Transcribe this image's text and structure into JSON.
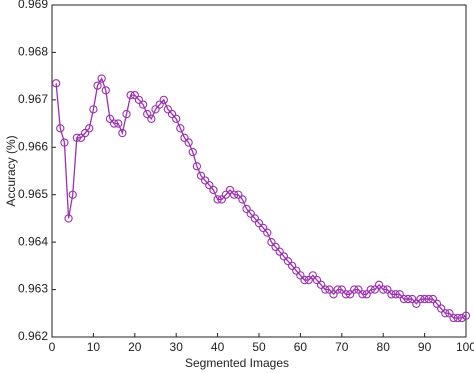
{
  "chart_data": {
    "type": "line",
    "x_label": "Segmented Images",
    "y_label": "Accuracy (%)",
    "xlim": [
      0,
      100
    ],
    "xticks": [
      0,
      10,
      20,
      30,
      40,
      50,
      60,
      70,
      80,
      90,
      100
    ],
    "ylim": [
      0.962,
      0.969
    ],
    "yticks": [
      0.962,
      0.963,
      0.964,
      0.965,
      0.966,
      0.967,
      0.968,
      0.969
    ],
    "x": [
      1,
      2,
      3,
      4,
      5,
      6,
      7,
      8,
      9,
      10,
      11,
      12,
      13,
      14,
      15,
      16,
      17,
      18,
      19,
      20,
      21,
      22,
      23,
      24,
      25,
      26,
      27,
      28,
      29,
      30,
      31,
      32,
      33,
      34,
      35,
      36,
      37,
      38,
      39,
      40,
      41,
      42,
      43,
      44,
      45,
      46,
      47,
      48,
      49,
      50,
      51,
      52,
      53,
      54,
      55,
      56,
      57,
      58,
      59,
      60,
      61,
      62,
      63,
      64,
      65,
      66,
      67,
      68,
      69,
      70,
      71,
      72,
      73,
      74,
      75,
      76,
      77,
      78,
      79,
      80,
      81,
      82,
      83,
      84,
      85,
      86,
      87,
      88,
      89,
      90,
      91,
      92,
      93,
      94,
      95,
      96,
      97,
      98,
      99,
      100
    ],
    "series": [
      {
        "color": "#9b30b0",
        "values": [
          0.96735,
          0.9664,
          0.9661,
          0.9645,
          0.965,
          0.9662,
          0.9662,
          0.9663,
          0.9664,
          0.9668,
          0.9673,
          0.96745,
          0.9672,
          0.9666,
          0.9665,
          0.9665,
          0.9663,
          0.9667,
          0.9671,
          0.9671,
          0.967,
          0.9669,
          0.9667,
          0.9666,
          0.9668,
          0.9669,
          0.967,
          0.9668,
          0.9667,
          0.9666,
          0.9664,
          0.9662,
          0.9661,
          0.9659,
          0.9656,
          0.9654,
          0.9653,
          0.9652,
          0.9651,
          0.9649,
          0.9649,
          0.965,
          0.9651,
          0.965,
          0.965,
          0.9649,
          0.9647,
          0.9646,
          0.9645,
          0.9644,
          0.9643,
          0.9642,
          0.964,
          0.9639,
          0.9638,
          0.9637,
          0.9636,
          0.9635,
          0.9634,
          0.9633,
          0.9632,
          0.9632,
          0.9633,
          0.9632,
          0.9631,
          0.963,
          0.963,
          0.9629,
          0.963,
          0.963,
          0.9629,
          0.9629,
          0.963,
          0.963,
          0.9629,
          0.9629,
          0.963,
          0.963,
          0.9631,
          0.963,
          0.963,
          0.9629,
          0.9629,
          0.9629,
          0.9628,
          0.9628,
          0.9628,
          0.9627,
          0.9628,
          0.9628,
          0.9628,
          0.9628,
          0.9627,
          0.9626,
          0.9625,
          0.9625,
          0.9624,
          0.9624,
          0.9624,
          0.96245
        ]
      }
    ]
  }
}
